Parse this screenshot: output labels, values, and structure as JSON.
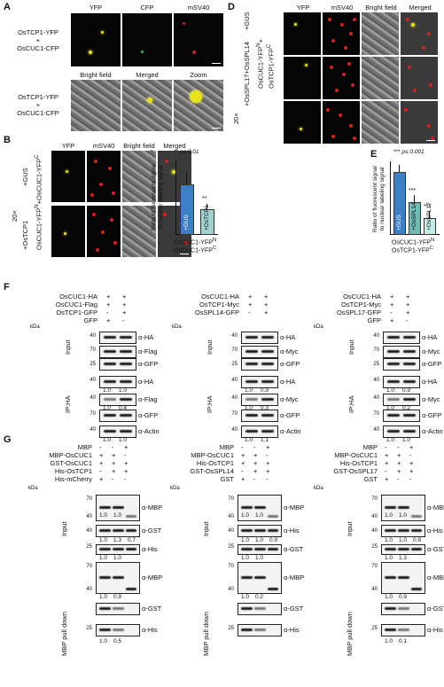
{
  "panels": {
    "A": "A",
    "B": "B",
    "C": "C",
    "D": "D",
    "E": "E",
    "F": "F",
    "G": "G"
  },
  "a": {
    "row1_label": [
      "OsTCP1-YFP",
      "+",
      "OsCUC1-CFP"
    ],
    "row2_label": [
      "OsTCP1-YFP",
      "+",
      "OsCUC1-CFP"
    ],
    "row1_tiles": [
      "YFP",
      "CFP",
      "mSV40"
    ],
    "row2_tiles": [
      "Bright field",
      "Merged",
      "Zoom"
    ]
  },
  "b": {
    "tiles": [
      "YFP",
      "mSV40",
      "Bright field",
      "Merged"
    ],
    "side_20x": "20×",
    "side_construct": [
      "OsCUC1-YFP",
      "N",
      "+",
      "OsCUC1-YFP",
      "C"
    ],
    "side_gus": "+GUS",
    "side_tcp1": "+OsTCP1"
  },
  "c": {
    "sig": "**",
    "sig_text": "p≤ 0.01",
    "ylabel": [
      "Ratio of fluorescent signal",
      "to nuclear labeling signal"
    ],
    "xlabel": [
      "OsCUC1-YFP",
      "N",
      "OsCUC1-YFP",
      "C"
    ],
    "bar_labels": [
      "+GUS",
      "+OsTCP1"
    ],
    "bar_sig": "**"
  },
  "d": {
    "tiles": [
      "YFP",
      "mSV40",
      "Bright field",
      "Merged"
    ],
    "side": [
      "20×",
      "+OsSPL17+OsSPL14",
      "+GUS",
      "OsCUC1-YFP",
      "N",
      "+",
      "OsTCP1-YFP",
      "C"
    ]
  },
  "e": {
    "sig": "***",
    "sig_text": "p≤ 0.001",
    "ylabel": [
      "Ratio of fluorescent signal",
      "to nuclear labeling signal"
    ],
    "xlabel": [
      "OsCUC1-YFP",
      "N",
      "OsTCP1-YFP",
      "C"
    ],
    "bar_labels": [
      "+GUS",
      "+OsSPL14",
      "+OsSPL17"
    ],
    "bar_sig": [
      "***",
      "***"
    ]
  },
  "f": {
    "blots": [
      {
        "rows": [
          [
            "OsCUC1-HA",
            "+",
            "+"
          ],
          [
            "OsCUC1-Flag",
            "+",
            "+"
          ],
          [
            "OsTCP1-GFP",
            "-",
            "+"
          ],
          [
            "GFP",
            "+",
            "-"
          ]
        ],
        "input": [
          "α-HA",
          "α-Flag",
          "α-GFP"
        ],
        "ip": [
          "α-HA",
          "α-Flag",
          "α-GFP",
          "α-Actin"
        ],
        "q": [
          [
            "1.0",
            "1.0"
          ],
          [
            "1.0",
            "0.4"
          ],
          [
            "1.0",
            "1.0"
          ]
        ]
      },
      {
        "rows": [
          [
            "OsCUC1-HA",
            "+",
            "+"
          ],
          [
            "OsTCP1-Myc",
            "+",
            "+"
          ],
          [
            "OsSPL14-GFP",
            "-",
            "+"
          ]
        ],
        "input": [
          "α-HA",
          "α-Myc",
          "α-GFP"
        ],
        "ip": [
          "α-HA",
          "α-Myc",
          "α-GFP",
          "α-Actin"
        ],
        "q": [
          [
            "1.0",
            "0.9"
          ],
          [
            "1.0",
            "0.3"
          ],
          [
            "1.0",
            "1.1"
          ]
        ]
      },
      {
        "rows": [
          [
            "OsCUC1-HA",
            "+",
            "+"
          ],
          [
            "OsTCP1-Myc",
            "+",
            "+"
          ],
          [
            "OsSPL17-GFP",
            "-",
            "+"
          ],
          [
            "GFP",
            "+",
            "-"
          ]
        ],
        "input": [
          "α-HA",
          "α-Myc",
          "α-GFP"
        ],
        "ip": [
          "α-HA",
          "α-Myc",
          "α-GFP",
          "α-Actin"
        ],
        "q": [
          [
            "1.0",
            "0.9"
          ],
          [
            "1.0",
            "0.2"
          ],
          [
            "1.0",
            "1.0"
          ]
        ]
      }
    ],
    "input": "Input",
    "ip": "IP:HA",
    "kda": "kDa",
    "markers": [
      "40",
      "70",
      "25"
    ]
  },
  "g": {
    "blots": [
      {
        "rows": [
          [
            "MBP",
            "-",
            "-",
            "+"
          ],
          [
            "MBP-OsCUC1",
            "+",
            "+",
            "-"
          ],
          [
            "GST-OsCUC1",
            "+",
            "+",
            "+"
          ],
          [
            "His-OsTCP1",
            "-",
            "+",
            "+"
          ],
          [
            "His-mCherry",
            "+",
            "-",
            "-"
          ]
        ],
        "input": [
          "α-MBP",
          "α-GST",
          "α-His"
        ],
        "pull": [
          "α-MBP",
          "α-GST",
          "α-His"
        ],
        "q": [
          [
            "1.0",
            "1.0"
          ],
          [
            "1.0",
            "1.3",
            "0.7"
          ],
          [
            "1.0",
            "1.0"
          ],
          [
            "1.0",
            "0.9"
          ],
          [
            "1.0",
            "0.5"
          ]
        ]
      },
      {
        "rows": [
          [
            "MBP",
            "-",
            "-",
            "+"
          ],
          [
            "MBP-OsCUC1",
            "+",
            "+",
            "-"
          ],
          [
            "His-OsTCP1",
            "+",
            "+",
            "+"
          ],
          [
            "GST-OsSPL14",
            "-",
            "+",
            "+"
          ],
          [
            "GST",
            "+",
            "-",
            "-"
          ]
        ],
        "input": [
          "α-MBP",
          "α-His",
          "α-GST"
        ],
        "pull": [
          "α-MBP",
          "α-GST",
          "α-His"
        ],
        "q": [
          [
            "1.0",
            "1.0"
          ],
          [
            "1.0",
            "1.0",
            "0.9"
          ],
          [
            "1.0",
            "1.0"
          ],
          [
            "1.0",
            "0.2"
          ]
        ]
      },
      {
        "rows": [
          [
            "MBP",
            "-",
            "-",
            "+"
          ],
          [
            "MBP-OsCUC1",
            "+",
            "+",
            "-"
          ],
          [
            "His-OsTCP1",
            "+",
            "+",
            "+"
          ],
          [
            "GST-OsSPL17",
            "-",
            "+",
            "+"
          ],
          [
            "GST",
            "+",
            "-",
            "-"
          ]
        ],
        "input": [
          "α-MBP",
          "α-His",
          "α-GST"
        ],
        "pull": [
          "α-MBP",
          "α-GST",
          "α-His"
        ],
        "q": [
          [
            "1.0",
            "1.0"
          ],
          [
            "1.0",
            "1.0",
            "0.9"
          ],
          [
            "1.0",
            "1.3"
          ],
          [
            "1.0",
            "0.9"
          ],
          [
            "1.0",
            "0.1"
          ]
        ]
      }
    ],
    "input": "Input",
    "pull": "MBP pull down",
    "kda": "kDa",
    "markers": [
      "70",
      "40",
      "25"
    ]
  }
}
